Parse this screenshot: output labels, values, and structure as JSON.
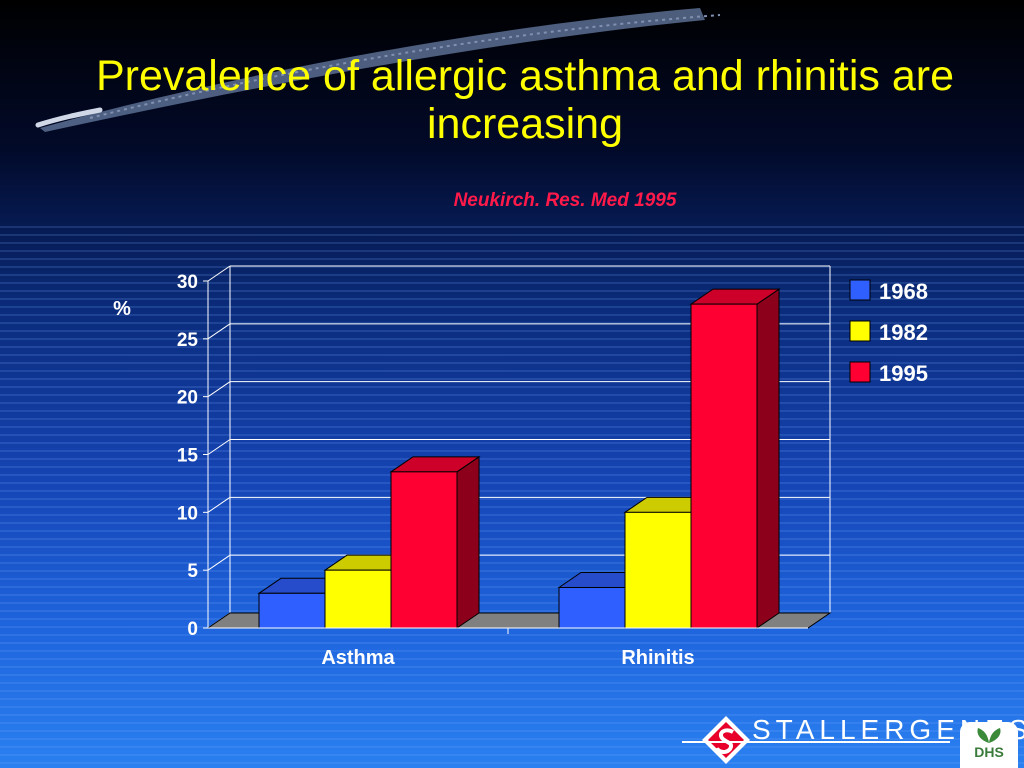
{
  "slide": {
    "title": "Prevalence of allergic asthma and rhinitis are increasing",
    "source": "Neukirch. Res. Med 1995"
  },
  "chart_data": {
    "type": "bar",
    "title": "",
    "xlabel": "",
    "ylabel": "%",
    "categories": [
      "Asthma",
      "Rhinitis"
    ],
    "series": [
      {
        "name": "1968",
        "values": [
          3,
          3.5
        ],
        "color": "#2f5fff"
      },
      {
        "name": "1982",
        "values": [
          5,
          10
        ],
        "color": "#ffff00"
      },
      {
        "name": "1995",
        "values": [
          13.5,
          28
        ],
        "color": "#ff0033"
      }
    ],
    "ylim": [
      0,
      30
    ],
    "yticks": [
      0,
      5,
      10,
      15,
      20,
      25,
      30
    ],
    "grid": true,
    "legend": "right"
  },
  "logo": {
    "company": "STALLERGENES",
    "badge": "DHS"
  },
  "colors": {
    "title": "#ffff00",
    "source": "#ff1a4a",
    "floor": "#808080"
  }
}
